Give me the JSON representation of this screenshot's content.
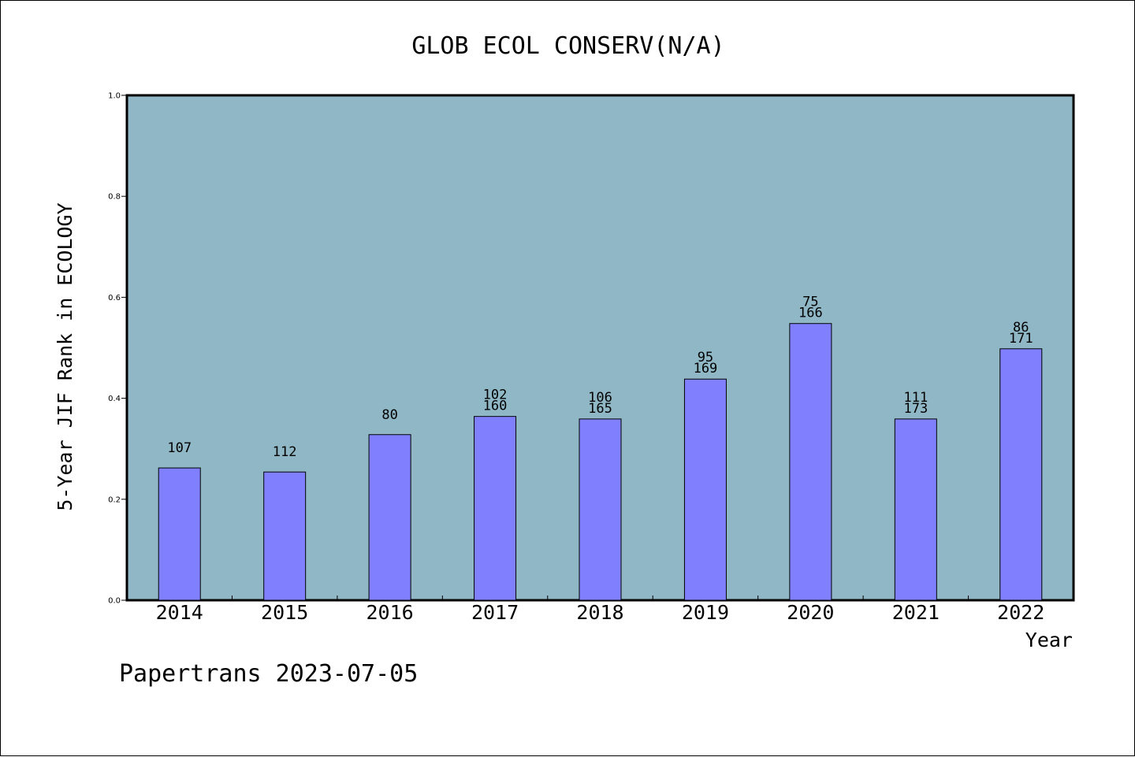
{
  "chart_data": {
    "type": "bar",
    "title": "GLOB ECOL CONSERV(N/A)",
    "xlabel": "Year",
    "ylabel": "5-Year JIF Rank in ECOLOGY",
    "ylim": [
      0,
      1
    ],
    "yticks": [
      "0.0",
      "0.2",
      "0.4",
      "0.6",
      "0.8",
      "1.0"
    ],
    "categories": [
      "2014",
      "2015",
      "2016",
      "2017",
      "2018",
      "2019",
      "2020",
      "2021",
      "2022"
    ],
    "values": [
      0.262,
      0.254,
      0.328,
      0.364,
      0.359,
      0.438,
      0.548,
      0.359,
      0.498
    ],
    "labels": [
      [
        "107"
      ],
      [
        "112"
      ],
      [
        "80"
      ],
      [
        "102",
        "160"
      ],
      [
        "106",
        "165"
      ],
      [
        "95",
        "169"
      ],
      [
        "75",
        "166"
      ],
      [
        "111",
        "173"
      ],
      [
        "86",
        "171"
      ]
    ],
    "grid": false,
    "plot_background": "#8fb7c5",
    "bar_color": "#8080ff"
  },
  "footer": "Papertrans 2023-07-05"
}
